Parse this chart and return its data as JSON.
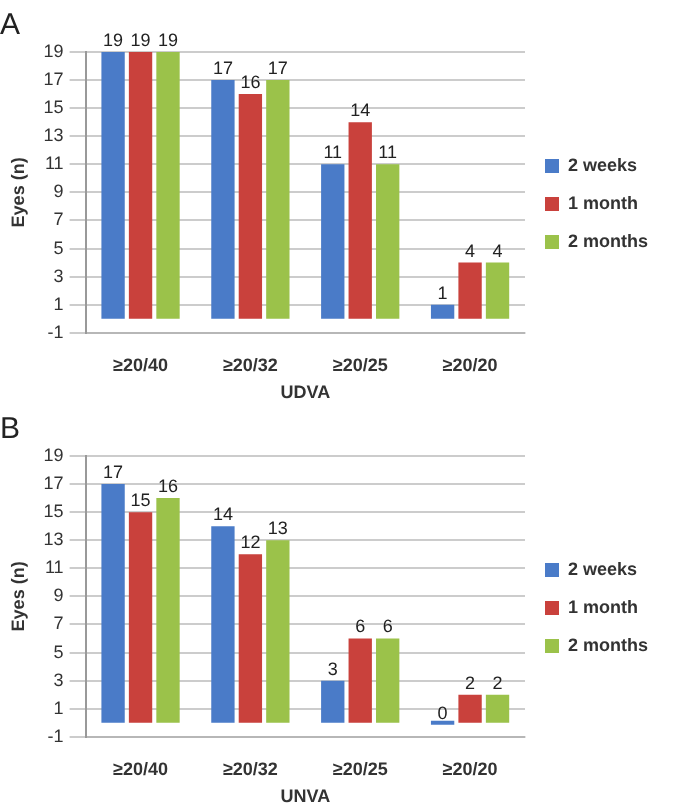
{
  "chart_data": [
    {
      "type": "bar",
      "title": "A",
      "xlabel": "UDVA",
      "ylabel": "Eyes (n)",
      "categories": [
        "≥20/40",
        "≥20/32",
        "≥20/25",
        "≥20/20"
      ],
      "series": [
        {
          "name": "2 weeks",
          "color": "#4a7bc8",
          "values": [
            19,
            17,
            11,
            1
          ]
        },
        {
          "name": "1 month",
          "color": "#c9413c",
          "values": [
            19,
            16,
            14,
            4
          ]
        },
        {
          "name": "2 months",
          "color": "#9bc24a",
          "values": [
            19,
            17,
            11,
            4
          ]
        }
      ],
      "ylim": [
        -1,
        19
      ],
      "yticks": [
        -1,
        1,
        3,
        5,
        7,
        9,
        11,
        13,
        15,
        17,
        19
      ],
      "grid": "y",
      "legend": "right",
      "data_labels": true
    },
    {
      "type": "bar",
      "title": "B",
      "xlabel": "UNVA",
      "ylabel": "Eyes (n)",
      "categories": [
        "≥20/40",
        "≥20/32",
        "≥20/25",
        "≥20/20"
      ],
      "series": [
        {
          "name": "2 weeks",
          "color": "#4a7bc8",
          "values": [
            17,
            14,
            3,
            0
          ]
        },
        {
          "name": "1 month",
          "color": "#c9413c",
          "values": [
            15,
            12,
            6,
            2
          ]
        },
        {
          "name": "2 months",
          "color": "#9bc24a",
          "values": [
            16,
            13,
            6,
            2
          ]
        }
      ],
      "ylim": [
        -1,
        19
      ],
      "yticks": [
        -1,
        1,
        3,
        5,
        7,
        9,
        11,
        13,
        15,
        17,
        19
      ],
      "grid": "y",
      "legend": "right",
      "data_labels": true
    }
  ]
}
